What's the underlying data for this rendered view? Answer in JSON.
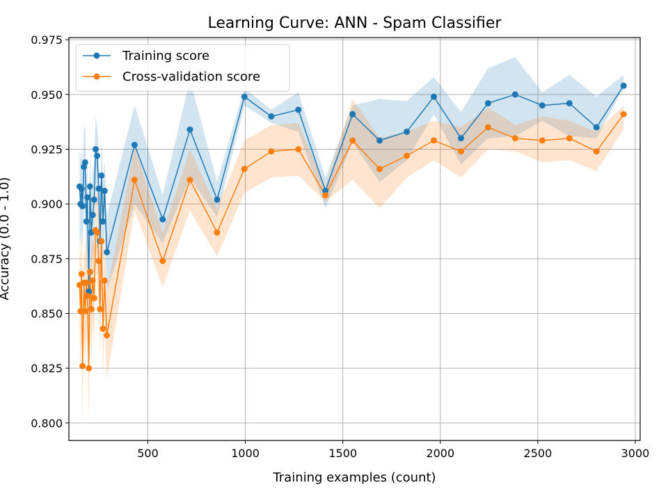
{
  "chart_data": {
    "type": "line",
    "title": "Learning Curve: ANN - Spam Classifier",
    "xlabel": "Training examples (count)",
    "ylabel": "Accuracy (0.0 - 1.0)",
    "xlim": [
      95,
      3025
    ],
    "ylim": [
      0.792,
      0.976
    ],
    "xticks": [
      500,
      1000,
      1500,
      2000,
      2500,
      3000
    ],
    "yticks": [
      0.8,
      0.825,
      0.85,
      0.875,
      0.9,
      0.925,
      0.95,
      0.975
    ],
    "grid": true,
    "legend_placement": "top-left",
    "series": [
      {
        "name": "Training score",
        "color": "#1f77b4",
        "band_alpha": 0.2,
        "points": [
          {
            "x": 150,
            "y": 0.908,
            "lo": 0.885,
            "hi": 0.925
          },
          {
            "x": 155,
            "y": 0.9,
            "lo": 0.88,
            "hi": 0.92
          },
          {
            "x": 160,
            "y": 0.907,
            "lo": 0.89,
            "hi": 0.925
          },
          {
            "x": 165,
            "y": 0.899,
            "lo": 0.88,
            "hi": 0.915
          },
          {
            "x": 172,
            "y": 0.917,
            "lo": 0.895,
            "hi": 0.935
          },
          {
            "x": 178,
            "y": 0.919,
            "lo": 0.9,
            "hi": 0.935
          },
          {
            "x": 185,
            "y": 0.892,
            "lo": 0.87,
            "hi": 0.91
          },
          {
            "x": 190,
            "y": 0.903,
            "lo": 0.885,
            "hi": 0.92
          },
          {
            "x": 197,
            "y": 0.86,
            "lo": 0.835,
            "hi": 0.88
          },
          {
            "x": 203,
            "y": 0.908,
            "lo": 0.89,
            "hi": 0.925
          },
          {
            "x": 210,
            "y": 0.887,
            "lo": 0.865,
            "hi": 0.905
          },
          {
            "x": 217,
            "y": 0.895,
            "lo": 0.875,
            "hi": 0.915
          },
          {
            "x": 225,
            "y": 0.902,
            "lo": 0.88,
            "hi": 0.92
          },
          {
            "x": 232,
            "y": 0.925,
            "lo": 0.91,
            "hi": 0.94
          },
          {
            "x": 240,
            "y": 0.922,
            "lo": 0.905,
            "hi": 0.935
          },
          {
            "x": 248,
            "y": 0.907,
            "lo": 0.89,
            "hi": 0.925
          },
          {
            "x": 255,
            "y": 0.883,
            "lo": 0.865,
            "hi": 0.9
          },
          {
            "x": 262,
            "y": 0.913,
            "lo": 0.895,
            "hi": 0.93
          },
          {
            "x": 270,
            "y": 0.892,
            "lo": 0.87,
            "hi": 0.91
          },
          {
            "x": 278,
            "y": 0.906,
            "lo": 0.89,
            "hi": 0.92
          },
          {
            "x": 290,
            "y": 0.878,
            "lo": 0.86,
            "hi": 0.895
          },
          {
            "x": 432,
            "y": 0.927,
            "lo": 0.9,
            "hi": 0.945
          },
          {
            "x": 576,
            "y": 0.893,
            "lo": 0.882,
            "hi": 0.904
          },
          {
            "x": 716,
            "y": 0.934,
            "lo": 0.912,
            "hi": 0.957
          },
          {
            "x": 855,
            "y": 0.902,
            "lo": 0.894,
            "hi": 0.91
          },
          {
            "x": 995,
            "y": 0.949,
            "lo": 0.945,
            "hi": 0.953
          },
          {
            "x": 1133,
            "y": 0.94,
            "lo": 0.937,
            "hi": 0.943
          },
          {
            "x": 1272,
            "y": 0.943,
            "lo": 0.933,
            "hi": 0.951
          },
          {
            "x": 1411,
            "y": 0.906,
            "lo": 0.898,
            "hi": 0.912
          },
          {
            "x": 1550,
            "y": 0.941,
            "lo": 0.928,
            "hi": 0.945
          },
          {
            "x": 1689,
            "y": 0.929,
            "lo": 0.91,
            "hi": 0.948
          },
          {
            "x": 1828,
            "y": 0.933,
            "lo": 0.92,
            "hi": 0.947
          },
          {
            "x": 1967,
            "y": 0.949,
            "lo": 0.941,
            "hi": 0.958
          },
          {
            "x": 2106,
            "y": 0.93,
            "lo": 0.918,
            "hi": 0.942
          },
          {
            "x": 2245,
            "y": 0.946,
            "lo": 0.93,
            "hi": 0.962
          },
          {
            "x": 2384,
            "y": 0.95,
            "lo": 0.931,
            "hi": 0.967
          },
          {
            "x": 2523,
            "y": 0.945,
            "lo": 0.938,
            "hi": 0.951
          },
          {
            "x": 2662,
            "y": 0.946,
            "lo": 0.931,
            "hi": 0.959
          },
          {
            "x": 2801,
            "y": 0.935,
            "lo": 0.93,
            "hi": 0.949
          },
          {
            "x": 2940,
            "y": 0.954,
            "lo": 0.953,
            "hi": 0.959
          }
        ]
      },
      {
        "name": "Cross-validation score",
        "color": "#ff7f0e",
        "band_alpha": 0.2,
        "points": [
          {
            "x": 150,
            "y": 0.863,
            "lo": 0.84,
            "hi": 0.885
          },
          {
            "x": 155,
            "y": 0.851,
            "lo": 0.825,
            "hi": 0.875
          },
          {
            "x": 160,
            "y": 0.868,
            "lo": 0.845,
            "hi": 0.89
          },
          {
            "x": 165,
            "y": 0.826,
            "lo": 0.8,
            "hi": 0.85
          },
          {
            "x": 172,
            "y": 0.864,
            "lo": 0.84,
            "hi": 0.885
          },
          {
            "x": 178,
            "y": 0.851,
            "lo": 0.828,
            "hi": 0.875
          },
          {
            "x": 185,
            "y": 0.864,
            "lo": 0.84,
            "hi": 0.885
          },
          {
            "x": 190,
            "y": 0.858,
            "lo": 0.835,
            "hi": 0.88
          },
          {
            "x": 197,
            "y": 0.825,
            "lo": 0.8,
            "hi": 0.85
          },
          {
            "x": 203,
            "y": 0.869,
            "lo": 0.845,
            "hi": 0.89
          },
          {
            "x": 210,
            "y": 0.852,
            "lo": 0.83,
            "hi": 0.875
          },
          {
            "x": 217,
            "y": 0.865,
            "lo": 0.845,
            "hi": 0.885
          },
          {
            "x": 225,
            "y": 0.857,
            "lo": 0.835,
            "hi": 0.88
          },
          {
            "x": 232,
            "y": 0.888,
            "lo": 0.87,
            "hi": 0.905
          },
          {
            "x": 240,
            "y": 0.887,
            "lo": 0.865,
            "hi": 0.905
          },
          {
            "x": 248,
            "y": 0.874,
            "lo": 0.85,
            "hi": 0.895
          },
          {
            "x": 255,
            "y": 0.852,
            "lo": 0.83,
            "hi": 0.875
          },
          {
            "x": 262,
            "y": 0.883,
            "lo": 0.86,
            "hi": 0.905
          },
          {
            "x": 270,
            "y": 0.843,
            "lo": 0.82,
            "hi": 0.865
          },
          {
            "x": 278,
            "y": 0.865,
            "lo": 0.845,
            "hi": 0.885
          },
          {
            "x": 290,
            "y": 0.84,
            "lo": 0.82,
            "hi": 0.86
          },
          {
            "x": 432,
            "y": 0.911,
            "lo": 0.897,
            "hi": 0.926
          },
          {
            "x": 576,
            "y": 0.874,
            "lo": 0.862,
            "hi": 0.887
          },
          {
            "x": 716,
            "y": 0.911,
            "lo": 0.897,
            "hi": 0.925
          },
          {
            "x": 855,
            "y": 0.887,
            "lo": 0.876,
            "hi": 0.898
          },
          {
            "x": 995,
            "y": 0.916,
            "lo": 0.905,
            "hi": 0.929
          },
          {
            "x": 1133,
            "y": 0.924,
            "lo": 0.912,
            "hi": 0.936
          },
          {
            "x": 1272,
            "y": 0.925,
            "lo": 0.913,
            "hi": 0.937
          },
          {
            "x": 1411,
            "y": 0.904,
            "lo": 0.901,
            "hi": 0.908
          },
          {
            "x": 1550,
            "y": 0.929,
            "lo": 0.911,
            "hi": 0.948
          },
          {
            "x": 1689,
            "y": 0.916,
            "lo": 0.898,
            "hi": 0.93
          },
          {
            "x": 1828,
            "y": 0.922,
            "lo": 0.912,
            "hi": 0.933
          },
          {
            "x": 1967,
            "y": 0.929,
            "lo": 0.92,
            "hi": 0.938
          },
          {
            "x": 2106,
            "y": 0.924,
            "lo": 0.912,
            "hi": 0.935
          },
          {
            "x": 2245,
            "y": 0.935,
            "lo": 0.925,
            "hi": 0.944
          },
          {
            "x": 2384,
            "y": 0.93,
            "lo": 0.924,
            "hi": 0.936
          },
          {
            "x": 2523,
            "y": 0.929,
            "lo": 0.919,
            "hi": 0.94
          },
          {
            "x": 2662,
            "y": 0.93,
            "lo": 0.92,
            "hi": 0.938
          },
          {
            "x": 2801,
            "y": 0.924,
            "lo": 0.915,
            "hi": 0.933
          },
          {
            "x": 2940,
            "y": 0.941,
            "lo": 0.934,
            "hi": 0.945
          }
        ]
      }
    ]
  }
}
